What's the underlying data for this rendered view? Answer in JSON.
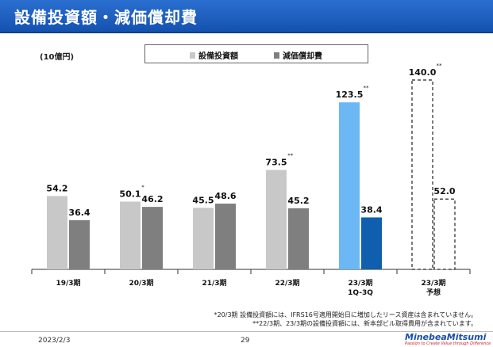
{
  "header": {
    "title": "設備投資額・減価償却費"
  },
  "chart_data": {
    "type": "bar",
    "unit_label": "(10億円)",
    "categories": [
      "19/3期",
      "20/3期",
      "21/3期",
      "22/3期",
      "23/3期",
      "23/3期"
    ],
    "category_sublabels": [
      "",
      "",
      "",
      "",
      "1Q-3Q",
      "予想"
    ],
    "series": [
      {
        "name": "設備投資額",
        "values": [
          54.2,
          50.1,
          45.5,
          73.5,
          123.5,
          140.0
        ],
        "value_labels": [
          "54.2",
          "50.1",
          "45.5",
          "73.5",
          "123.5",
          "140.0"
        ],
        "marks": [
          "",
          "*",
          "",
          "**",
          "**",
          "**"
        ]
      },
      {
        "name": "減価償却費",
        "values": [
          36.4,
          46.2,
          48.6,
          45.2,
          38.4,
          52.0
        ],
        "value_labels": [
          "36.4",
          "46.2",
          "48.6",
          "45.2",
          "38.4",
          "52.0"
        ],
        "marks": [
          "",
          "",
          "",
          "",
          "",
          ""
        ]
      }
    ],
    "ylim": [
      0,
      150
    ],
    "grid": false,
    "legend_position": "top",
    "colors": {
      "capex": "#c8c8c8",
      "depreciation": "#7f7f7f",
      "capex_1q3q": "#6bb8f5",
      "depreciation_1q3q": "#0f5fae",
      "forecast_fill": "#ffffff",
      "forecast_border": "#222222"
    }
  },
  "footnotes": [
    "*20/3期 設備投資額には、IFRS16号適用開始日に増加したリース資産は含まれていません。",
    "**22/3期、23/3期の設備投資額には、新本部ビル取得費用が含まれています。"
  ],
  "footer": {
    "date": "2023/2/3",
    "page": "29",
    "logo": "MinebeaMitsumi",
    "tagline": "Passion to Create Value through Difference"
  },
  "colors": {
    "header_bg": "#1a5cc0",
    "header_text": "#ffffff"
  }
}
